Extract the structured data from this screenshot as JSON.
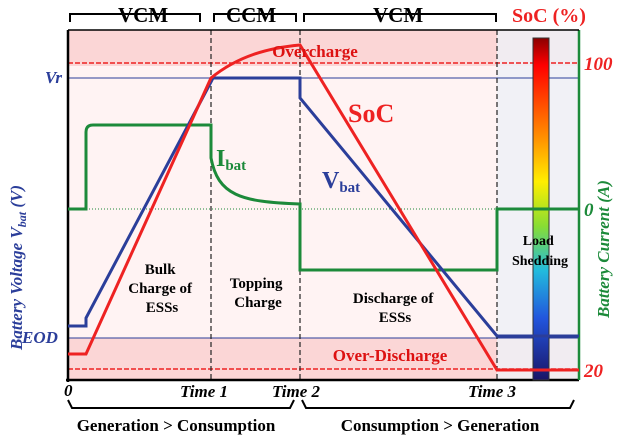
{
  "top_labels": {
    "vcm_left": "VCM",
    "ccm": "CCM",
    "vcm_right": "VCM",
    "soc": "SoC (%)"
  },
  "zones": {
    "overcharge": "Overcharge",
    "overdischarge": "Over-Discharge"
  },
  "left_axis": {
    "title_main": "Battery Voltage V",
    "title_sub": "bat",
    "title_unit": " (V)",
    "vr": "Vr",
    "eod": "EOD",
    "origin": "0"
  },
  "right_axis": {
    "title": "Battery Current (A)",
    "zero": "0",
    "soc_high": "100",
    "soc_low": "20"
  },
  "x_ticks": {
    "time1": "Time 1",
    "time2": "Time 2",
    "time3": "Time 3"
  },
  "bottom_labels": {
    "left": "Generation > Consumption",
    "right": "Consumption > Generation"
  },
  "phases": {
    "bulk": [
      "Bulk",
      "Charge of",
      "ESSs"
    ],
    "topping": [
      "Topping",
      "Charge"
    ],
    "discharge": [
      "Discharge of",
      "ESSs"
    ],
    "load": [
      "Load",
      "Shedding"
    ]
  },
  "curve_labels": {
    "soc": "SoC",
    "ibat_main": "I",
    "ibat_sub": "bat",
    "vbat_main": "V",
    "vbat_sub": "bat"
  },
  "colors": {
    "soc": "#ee2222",
    "vbat": "#2b3e9a",
    "ibat": "#1c8a3a",
    "zone_fill": "#fbd6d6",
    "plot_fill": "#fff3f3",
    "load_fill": "#eef0f6"
  },
  "chart_data": {
    "type": "line",
    "x_events": [
      "0",
      "Time 1",
      "Time 2",
      "Time 3"
    ],
    "series": [
      {
        "name": "SoC",
        "unit": "%"
      },
      {
        "name": "Vbat",
        "unit": "V"
      },
      {
        "name": "Ibat",
        "unit": "A"
      }
    ],
    "soc_axis": {
      "low": 20,
      "high": 100
    }
  }
}
